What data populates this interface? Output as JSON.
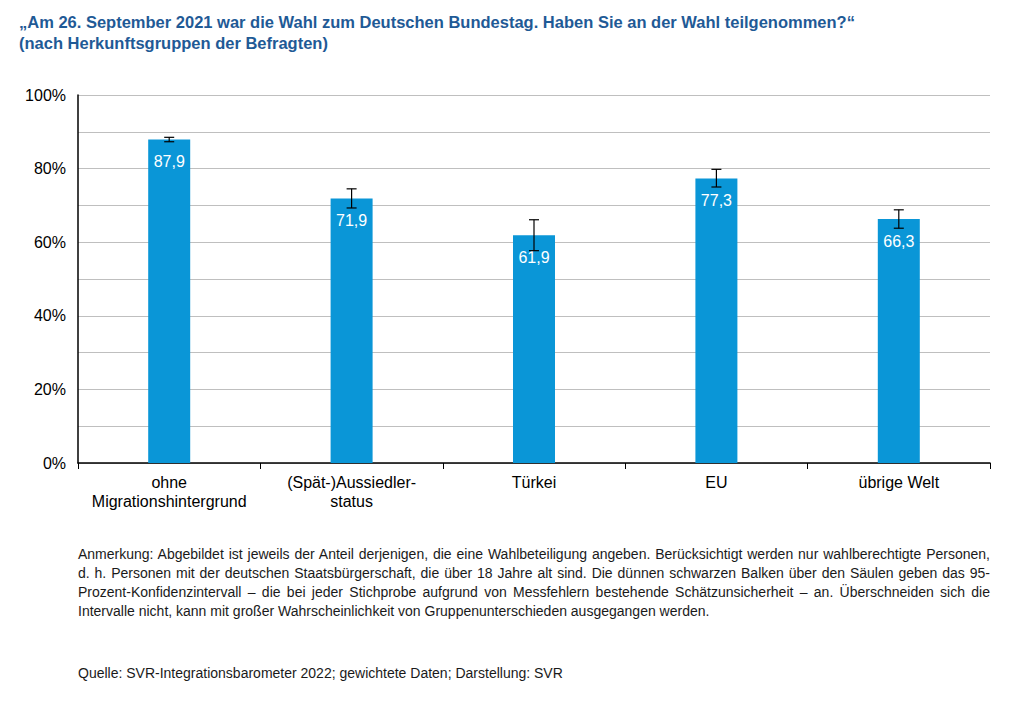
{
  "chart_data": {
    "type": "bar",
    "title": "„Am 26. September 2021 war die Wahl zum Deutschen Bundestag. Haben Sie an der Wahl teilgenommen?“",
    "subtitle": "(nach Herkunftsgruppen der Befragten)",
    "categories": [
      "ohne\nMigrationshintergrund",
      "(Spät-)Aussiedler-\nstatus",
      "Türkei",
      "EU",
      "übrige Welt"
    ],
    "values": [
      87.9,
      71.9,
      61.9,
      77.3,
      66.3
    ],
    "value_labels": [
      "87,9",
      "71,9",
      "61,9",
      "77,3",
      "66,3"
    ],
    "ci_low": [
      87.3,
      69.3,
      57.7,
      75.0,
      63.8
    ],
    "ci_high": [
      88.5,
      74.5,
      66.1,
      79.8,
      68.8
    ],
    "color": "#0a96d7",
    "ylim": [
      0,
      100
    ],
    "yticks": [
      {
        "value": 0,
        "label": "0%"
      },
      {
        "value": 20,
        "label": "20%"
      },
      {
        "value": 40,
        "label": "40%"
      },
      {
        "value": 60,
        "label": "60%"
      },
      {
        "value": 80,
        "label": "80%"
      },
      {
        "value": 100,
        "label": "100%"
      }
    ],
    "grid": true,
    "data_labels": true,
    "note": "Anmerkung: Abgebildet ist jeweils der Anteil derjenigen, die eine Wahlbeteiligung angeben. Berücksichtigt werden nur wahlberechtigte Personen, d. h. Personen mit der deutschen Staatsbürgerschaft, die über 18 Jahre alt sind. Die dünnen schwarzen Balken über den Säulen geben das 95-Prozent-Konfidenzintervall – die bei jeder Stichprobe aufgrund von Messfehlern bestehende Schätzunsicherheit – an. Überschneiden sich die Intervalle nicht, kann mit großer Wahrscheinlichkeit von Gruppenunterschieden ausgegangen werden.",
    "source": "Quelle: SVR-Integrationsbarometer 2022; gewichtete Daten; Darstellung: SVR"
  }
}
